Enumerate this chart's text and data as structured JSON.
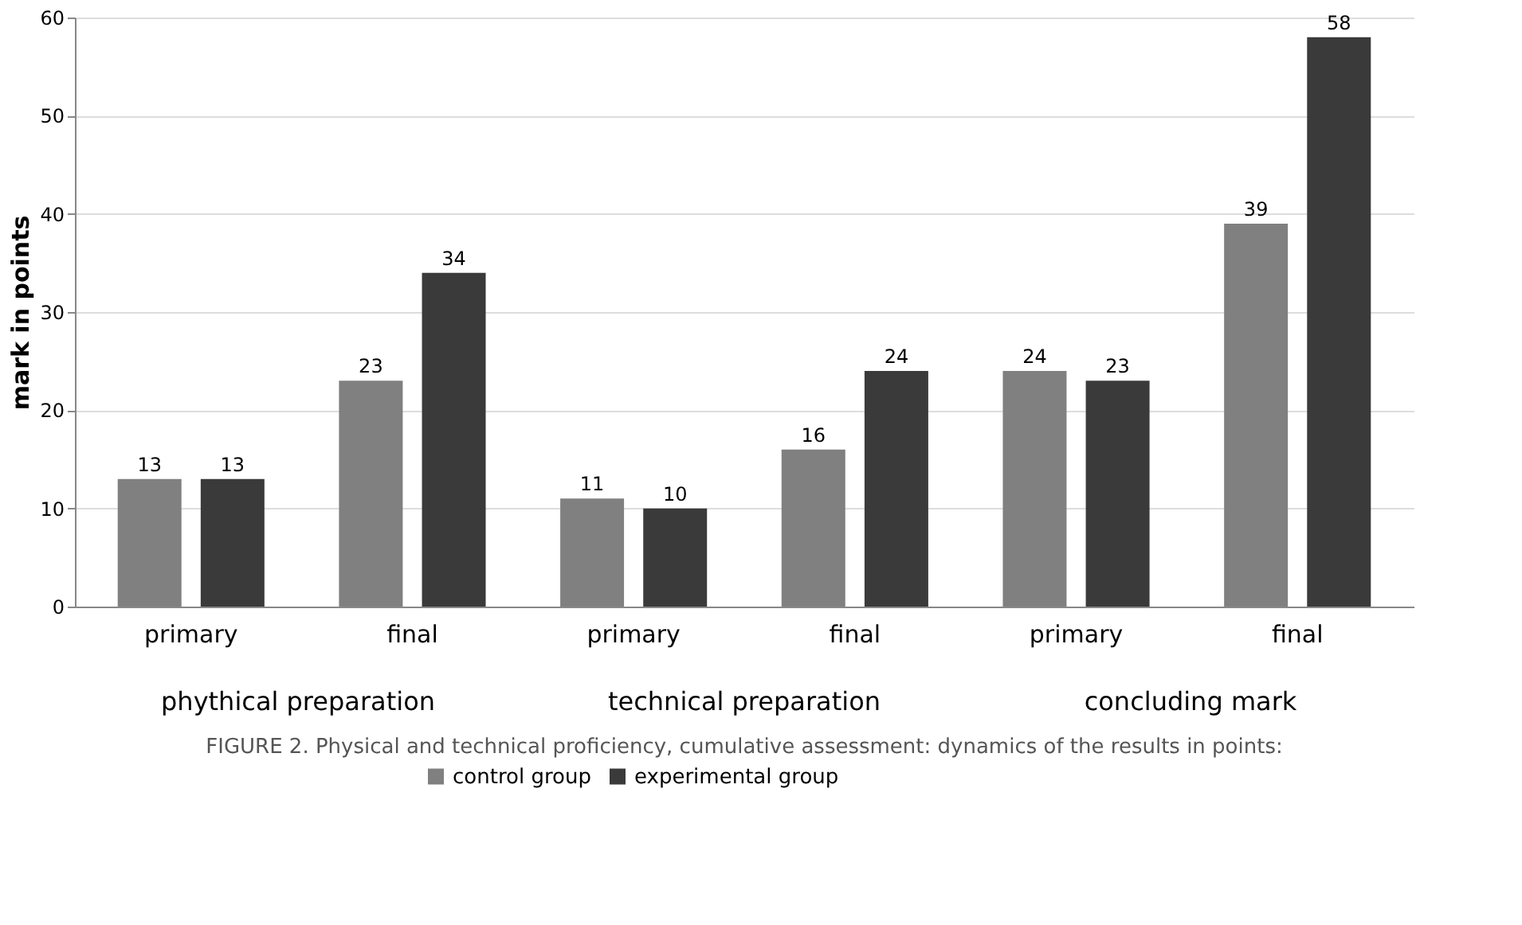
{
  "chart_data": {
    "type": "bar",
    "ylabel": "mark in points",
    "categories": [
      "primary",
      "final",
      "primary",
      "final",
      "primary",
      "final"
    ],
    "series": [
      {
        "name": "control group",
        "color": "#808080",
        "values": [
          13,
          23,
          11,
          16,
          24,
          39
        ]
      },
      {
        "name": "experimental group",
        "color": "#3a3a3a",
        "values": [
          13,
          34,
          10,
          24,
          23,
          58
        ]
      }
    ],
    "ylim": [
      0,
      60
    ],
    "yticks": [
      0,
      10,
      20,
      30,
      40,
      50,
      60
    ],
    "grid": "y",
    "data_labels": true,
    "legend": "bottom",
    "annotations": [
      "phythical preparation",
      "technical preparation",
      "concluding mark",
      "FIGURE 2. Physical and technical proficiency, cumulative assessment: dynamics of the results in points:"
    ]
  }
}
